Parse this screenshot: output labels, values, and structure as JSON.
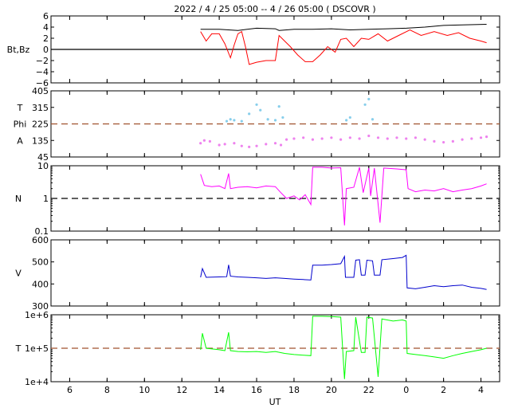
{
  "title": "2022 /   4 / 25   05:00  --   4 / 26   05:00 ( DSCOVR )",
  "x_axis": {
    "label": "UT",
    "range_hours": [
      5,
      29
    ],
    "tick_hours": [
      6,
      8,
      10,
      12,
      14,
      16,
      18,
      20,
      22,
      24,
      26,
      28
    ],
    "tick_labels": [
      "6",
      "8",
      "10",
      "12",
      "14",
      "16",
      "18",
      "20",
      "22",
      "0",
      "2",
      "4"
    ]
  },
  "colors": {
    "bt": "#000000",
    "bz": "#ff0000",
    "theta": "#87ceeb",
    "phi": "#ee82ee",
    "density": "#ff00ff",
    "speed": "#0000cd",
    "temperature": "#00ff00",
    "ref_dashed_brown": "#a0522d",
    "ref_dashed_black": "#000000"
  },
  "panels": [
    {
      "id": "mag",
      "labels": [
        "Bt,Bz"
      ],
      "scale": "linear",
      "ylim": [
        -6,
        6
      ],
      "ticks": [
        6,
        4,
        2,
        0,
        -2,
        -4,
        -6
      ],
      "tick_labels": [
        "6",
        "4",
        "2",
        "0",
        "−2",
        "−4",
        "−6"
      ],
      "ref_line": {
        "value": 0,
        "style": "solid",
        "color": "#000000"
      }
    },
    {
      "id": "angles",
      "labels": [
        "T",
        "Phi",
        "A"
      ],
      "scale": "linear",
      "ylim": [
        45,
        405
      ],
      "ticks": [
        405,
        315,
        225,
        135,
        45
      ],
      "tick_labels": [
        "405",
        "315",
        "225",
        "135",
        "45"
      ],
      "ref_line": {
        "value": 225,
        "style": "dashed",
        "color": "#a0522d"
      }
    },
    {
      "id": "density",
      "labels": [
        "N"
      ],
      "scale": "log",
      "ylim": [
        0.1,
        10
      ],
      "ticks": [
        10,
        1,
        0.1
      ],
      "tick_labels": [
        "10",
        "1",
        "0.1"
      ],
      "ref_line": {
        "value": 1,
        "style": "dashed",
        "color": "#000000"
      }
    },
    {
      "id": "speed",
      "labels": [
        "V"
      ],
      "scale": "linear",
      "ylim": [
        300,
        600
      ],
      "ticks": [
        600,
        500,
        400,
        300
      ],
      "tick_labels": [
        "600",
        "500",
        "400",
        "300"
      ],
      "ref_line": null
    },
    {
      "id": "temperature",
      "labels": [
        "T"
      ],
      "scale": "log",
      "ylim": [
        10000,
        1000000
      ],
      "ticks": [
        1000000,
        100000,
        10000
      ],
      "tick_labels": [
        "1e+6",
        "1e+5",
        "1e+4"
      ],
      "ref_line": {
        "value": 100000,
        "style": "dashed",
        "color": "#a0522d"
      }
    }
  ],
  "chart_data": {
    "type": "line",
    "title": "2022 /   4 / 25   05:00  --   4 / 26   05:00 ( DSCOVR )",
    "xlabel": "UT",
    "x_unit": "hours since 2022-04-25 00:00 UT",
    "xlim": [
      5,
      29
    ],
    "series": [
      {
        "name": "Bt",
        "panel": "mag",
        "kind": "line",
        "points": [
          [
            13.0,
            3.6
          ],
          [
            14.0,
            3.6
          ],
          [
            15.0,
            3.4
          ],
          [
            15.5,
            3.6
          ],
          [
            16.0,
            3.8
          ],
          [
            17.0,
            3.7
          ],
          [
            17.2,
            3.4
          ],
          [
            18.0,
            3.6
          ],
          [
            19.0,
            3.6
          ],
          [
            20.0,
            3.7
          ],
          [
            21.0,
            3.5
          ],
          [
            22.0,
            3.6
          ],
          [
            23.0,
            3.7
          ],
          [
            24.0,
            3.8
          ],
          [
            25.0,
            4.0
          ],
          [
            26.0,
            4.3
          ],
          [
            27.0,
            4.4
          ],
          [
            28.3,
            4.5
          ]
        ]
      },
      {
        "name": "Bz",
        "panel": "mag",
        "kind": "line",
        "points": [
          [
            13.0,
            3.2
          ],
          [
            13.3,
            1.5
          ],
          [
            13.6,
            2.8
          ],
          [
            14.0,
            2.8
          ],
          [
            14.3,
            1.0
          ],
          [
            14.6,
            -1.5
          ],
          [
            14.8,
            0.8
          ],
          [
            15.0,
            2.8
          ],
          [
            15.2,
            3.2
          ],
          [
            15.4,
            0.5
          ],
          [
            15.6,
            -2.7
          ],
          [
            16.0,
            -2.3
          ],
          [
            16.5,
            -2.0
          ],
          [
            17.0,
            -2.0
          ],
          [
            17.2,
            2.5
          ],
          [
            17.5,
            1.5
          ],
          [
            17.8,
            0.5
          ],
          [
            18.2,
            -1.0
          ],
          [
            18.6,
            -2.2
          ],
          [
            19.0,
            -2.2
          ],
          [
            19.4,
            -1.0
          ],
          [
            19.8,
            0.5
          ],
          [
            20.2,
            -0.5
          ],
          [
            20.5,
            1.8
          ],
          [
            20.8,
            2.0
          ],
          [
            21.2,
            0.5
          ],
          [
            21.6,
            2.0
          ],
          [
            22.0,
            1.8
          ],
          [
            22.5,
            2.8
          ],
          [
            23.0,
            1.5
          ],
          [
            23.6,
            2.5
          ],
          [
            24.2,
            3.5
          ],
          [
            24.8,
            2.5
          ],
          [
            25.5,
            3.2
          ],
          [
            26.2,
            2.5
          ],
          [
            26.8,
            3.0
          ],
          [
            27.4,
            2.0
          ],
          [
            28.0,
            1.5
          ],
          [
            28.3,
            1.2
          ]
        ]
      },
      {
        "name": "Theta",
        "panel": "angles",
        "kind": "points",
        "points": [
          [
            14.4,
            240
          ],
          [
            14.6,
            250
          ],
          [
            14.8,
            245
          ],
          [
            15.2,
            240
          ],
          [
            15.6,
            280
          ],
          [
            16.0,
            330
          ],
          [
            16.2,
            300
          ],
          [
            16.6,
            250
          ],
          [
            17.0,
            245
          ],
          [
            17.2,
            320
          ],
          [
            17.4,
            260
          ],
          [
            20.8,
            245
          ],
          [
            21.0,
            260
          ],
          [
            21.8,
            330
          ],
          [
            22.0,
            360
          ],
          [
            22.2,
            250
          ]
        ]
      },
      {
        "name": "Phi",
        "panel": "angles",
        "kind": "points",
        "points": [
          [
            13.0,
            120
          ],
          [
            13.2,
            135
          ],
          [
            13.5,
            130
          ],
          [
            14.0,
            110
          ],
          [
            14.3,
            115
          ],
          [
            14.8,
            120
          ],
          [
            15.2,
            105
          ],
          [
            15.6,
            100
          ],
          [
            16.0,
            105
          ],
          [
            16.5,
            115
          ],
          [
            17.0,
            120
          ],
          [
            17.3,
            110
          ],
          [
            17.6,
            140
          ],
          [
            18.0,
            145
          ],
          [
            18.5,
            150
          ],
          [
            19.0,
            140
          ],
          [
            19.5,
            145
          ],
          [
            20.0,
            150
          ],
          [
            20.5,
            140
          ],
          [
            21.0,
            150
          ],
          [
            21.5,
            145
          ],
          [
            22.0,
            160
          ],
          [
            22.5,
            150
          ],
          [
            23.0,
            145
          ],
          [
            23.5,
            150
          ],
          [
            24.0,
            145
          ],
          [
            24.5,
            150
          ],
          [
            25.0,
            140
          ],
          [
            25.5,
            130
          ],
          [
            26.0,
            125
          ],
          [
            26.5,
            130
          ],
          [
            27.0,
            140
          ],
          [
            27.5,
            145
          ],
          [
            28.0,
            150
          ],
          [
            28.3,
            155
          ]
        ]
      },
      {
        "name": "N",
        "panel": "density",
        "kind": "line",
        "points": [
          [
            13.0,
            5.5
          ],
          [
            13.2,
            2.5
          ],
          [
            13.6,
            2.3
          ],
          [
            14.0,
            2.4
          ],
          [
            14.3,
            2.0
          ],
          [
            14.5,
            5.8
          ],
          [
            14.6,
            2.0
          ],
          [
            15.0,
            2.2
          ],
          [
            15.5,
            2.3
          ],
          [
            16.0,
            2.1
          ],
          [
            16.5,
            2.4
          ],
          [
            17.0,
            2.3
          ],
          [
            17.3,
            1.5
          ],
          [
            17.6,
            1.0
          ],
          [
            18.0,
            1.2
          ],
          [
            18.3,
            0.9
          ],
          [
            18.6,
            1.3
          ],
          [
            18.9,
            0.65
          ],
          [
            19.0,
            9.0
          ],
          [
            19.5,
            9.0
          ],
          [
            20.0,
            8.5
          ],
          [
            20.5,
            8.7
          ],
          [
            20.7,
            0.15
          ],
          [
            20.8,
            2.0
          ],
          [
            21.2,
            2.2
          ],
          [
            21.5,
            9.0
          ],
          [
            21.7,
            1.5
          ],
          [
            22.0,
            8.5
          ],
          [
            22.1,
            1.2
          ],
          [
            22.3,
            8.5
          ],
          [
            22.6,
            0.18
          ],
          [
            22.8,
            8.5
          ],
          [
            23.5,
            8.0
          ],
          [
            24.0,
            7.5
          ],
          [
            24.1,
            2.0
          ],
          [
            24.5,
            1.6
          ],
          [
            25.0,
            1.8
          ],
          [
            25.5,
            1.7
          ],
          [
            26.0,
            2.0
          ],
          [
            26.5,
            1.6
          ],
          [
            27.0,
            1.8
          ],
          [
            27.5,
            2.0
          ],
          [
            28.0,
            2.4
          ],
          [
            28.3,
            2.8
          ]
        ]
      },
      {
        "name": "V",
        "panel": "speed",
        "kind": "line",
        "points": [
          [
            13.0,
            430
          ],
          [
            13.1,
            470
          ],
          [
            13.3,
            430
          ],
          [
            14.0,
            432
          ],
          [
            14.4,
            433
          ],
          [
            14.5,
            487
          ],
          [
            14.6,
            435
          ],
          [
            15.0,
            432
          ],
          [
            15.5,
            430
          ],
          [
            16.0,
            428
          ],
          [
            16.5,
            425
          ],
          [
            17.0,
            428
          ],
          [
            17.5,
            425
          ],
          [
            18.0,
            422
          ],
          [
            18.5,
            420
          ],
          [
            18.9,
            418
          ],
          [
            19.0,
            485
          ],
          [
            19.5,
            485
          ],
          [
            20.0,
            488
          ],
          [
            20.5,
            492
          ],
          [
            20.7,
            525
          ],
          [
            20.75,
            430
          ],
          [
            21.2,
            430
          ],
          [
            21.3,
            508
          ],
          [
            21.5,
            510
          ],
          [
            21.6,
            440
          ],
          [
            21.8,
            440
          ],
          [
            21.9,
            508
          ],
          [
            22.2,
            505
          ],
          [
            22.3,
            440
          ],
          [
            22.6,
            440
          ],
          [
            22.7,
            510
          ],
          [
            23.3,
            515
          ],
          [
            23.8,
            520
          ],
          [
            24.0,
            530
          ],
          [
            24.05,
            382
          ],
          [
            24.5,
            378
          ],
          [
            25.0,
            385
          ],
          [
            25.5,
            392
          ],
          [
            26.0,
            388
          ],
          [
            26.5,
            392
          ],
          [
            27.0,
            395
          ],
          [
            27.5,
            385
          ],
          [
            28.0,
            380
          ],
          [
            28.3,
            375
          ]
        ]
      },
      {
        "name": "T",
        "panel": "temperature",
        "kind": "line",
        "points": [
          [
            13.0,
            90000
          ],
          [
            13.1,
            280000
          ],
          [
            13.3,
            100000
          ],
          [
            14.0,
            90000
          ],
          [
            14.3,
            85000
          ],
          [
            14.5,
            300000
          ],
          [
            14.6,
            85000
          ],
          [
            15.0,
            80000
          ],
          [
            15.5,
            78000
          ],
          [
            16.0,
            80000
          ],
          [
            16.5,
            75000
          ],
          [
            17.0,
            80000
          ],
          [
            17.5,
            70000
          ],
          [
            18.0,
            65000
          ],
          [
            18.5,
            62000
          ],
          [
            18.9,
            60000
          ],
          [
            19.0,
            900000
          ],
          [
            19.5,
            900000
          ],
          [
            20.0,
            880000
          ],
          [
            20.5,
            850000
          ],
          [
            20.7,
            12000
          ],
          [
            20.8,
            80000
          ],
          [
            21.2,
            85000
          ],
          [
            21.3,
            850000
          ],
          [
            21.6,
            75000
          ],
          [
            21.8,
            75000
          ],
          [
            21.9,
            850000
          ],
          [
            22.2,
            800000
          ],
          [
            22.5,
            14000
          ],
          [
            22.7,
            750000
          ],
          [
            23.3,
            650000
          ],
          [
            23.8,
            700000
          ],
          [
            24.0,
            650000
          ],
          [
            24.05,
            70000
          ],
          [
            24.5,
            65000
          ],
          [
            25.0,
            60000
          ],
          [
            25.5,
            55000
          ],
          [
            26.0,
            50000
          ],
          [
            26.5,
            60000
          ],
          [
            27.0,
            70000
          ],
          [
            27.5,
            80000
          ],
          [
            28.0,
            90000
          ],
          [
            28.3,
            100000
          ]
        ]
      }
    ]
  }
}
